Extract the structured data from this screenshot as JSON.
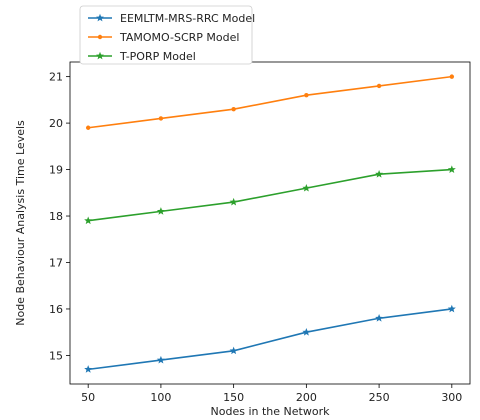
{
  "chart_data": {
    "type": "line",
    "x": [
      50,
      100,
      150,
      200,
      250,
      300
    ],
    "series": [
      {
        "name": "EEMLTM-MRS-RRC Model",
        "color": "#1f77b4",
        "marker": "star",
        "values": [
          14.7,
          14.9,
          15.1,
          15.5,
          15.8,
          16.0
        ]
      },
      {
        "name": "TAMOMO-SCRP Model",
        "color": "#ff7f0e",
        "marker": "dot",
        "values": [
          19.9,
          20.1,
          20.3,
          20.6,
          20.8,
          21.0
        ]
      },
      {
        "name": "T-PORP Model",
        "color": "#2ca02c",
        "marker": "star",
        "values": [
          17.9,
          18.1,
          18.3,
          18.6,
          18.9,
          19.0
        ]
      }
    ],
    "xlabel": "Nodes in the Network",
    "ylabel": "Node Behaviour Analysis Time Levels",
    "xticks": [
      50,
      100,
      150,
      200,
      250,
      300
    ],
    "yticks": [
      15,
      16,
      17,
      18,
      19,
      20,
      21
    ],
    "xlim": [
      37.5,
      312.5
    ],
    "ylim": [
      14.385,
      21.315
    ],
    "grid": false,
    "legend_position": "upper-left"
  }
}
